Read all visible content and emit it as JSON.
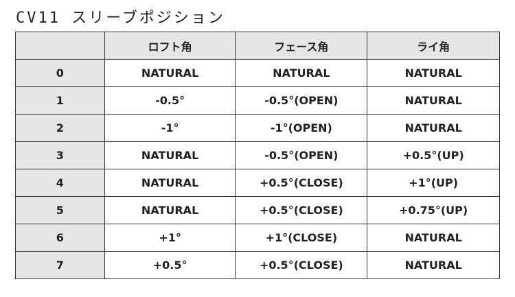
{
  "title": "CV11 スリーブポジション",
  "table": {
    "headers": [
      "",
      "ロフト角",
      "フェース角",
      "ライ角"
    ],
    "rows": [
      [
        "0",
        "NATURAL",
        "NATURAL",
        "NATURAL"
      ],
      [
        "1",
        "-0.5°",
        "-0.5°(OPEN)",
        "NATURAL"
      ],
      [
        "2",
        "-1°",
        "-1°(OPEN)",
        "NATURAL"
      ],
      [
        "3",
        "NATURAL",
        "-0.5°(OPEN)",
        "+0.5°(UP)"
      ],
      [
        "4",
        "NATURAL",
        "+0.5°(CLOSE)",
        "+1°(UP)"
      ],
      [
        "5",
        "NATURAL",
        "+0.5°(CLOSE)",
        "+0.75°(UP)"
      ],
      [
        "6",
        "+1°",
        "+1°(CLOSE)",
        "NATURAL"
      ],
      [
        "7",
        "+0.5°",
        "+0.5°(CLOSE)",
        "NATURAL"
      ]
    ]
  }
}
